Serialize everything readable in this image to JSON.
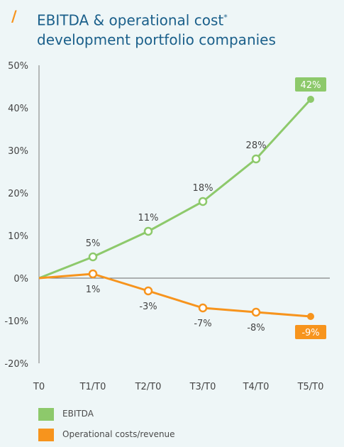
{
  "header": {
    "slash": "/",
    "title": "EBITDA & operational cost",
    "title_mark": "*",
    "title_rest": " development portfolio companies"
  },
  "colors": {
    "ebitda": "#8dc96b",
    "opcost": "#f7941d",
    "title": "#1a5f8a",
    "accent": "#f7941d",
    "background": "#eef6f7"
  },
  "chart_data": {
    "type": "line",
    "categories": [
      "T0",
      "T1/T0",
      "T2/T0",
      "T3/T0",
      "T4/T0",
      "T5/T0"
    ],
    "ylim": [
      -20,
      50
    ],
    "yticks": [
      50,
      40,
      30,
      20,
      10,
      0,
      -10,
      -20
    ],
    "ytick_labels": [
      "50%",
      "40%",
      "30%",
      "20%",
      "10%",
      "0%",
      "-10%",
      "-20%"
    ],
    "grid": false,
    "legend_position": "bottom-left",
    "series": [
      {
        "name": "EBITDA",
        "values": [
          0,
          5,
          11,
          18,
          28,
          42
        ],
        "labels": [
          "",
          "5%",
          "11%",
          "18%",
          "28%",
          "42%"
        ]
      },
      {
        "name": "Operational costs/revenue",
        "values": [
          0,
          1,
          -3,
          -7,
          -8,
          -9
        ],
        "labels": [
          "",
          "1%",
          "-3%",
          "-7%",
          "-8%",
          "-9%"
        ]
      }
    ]
  }
}
